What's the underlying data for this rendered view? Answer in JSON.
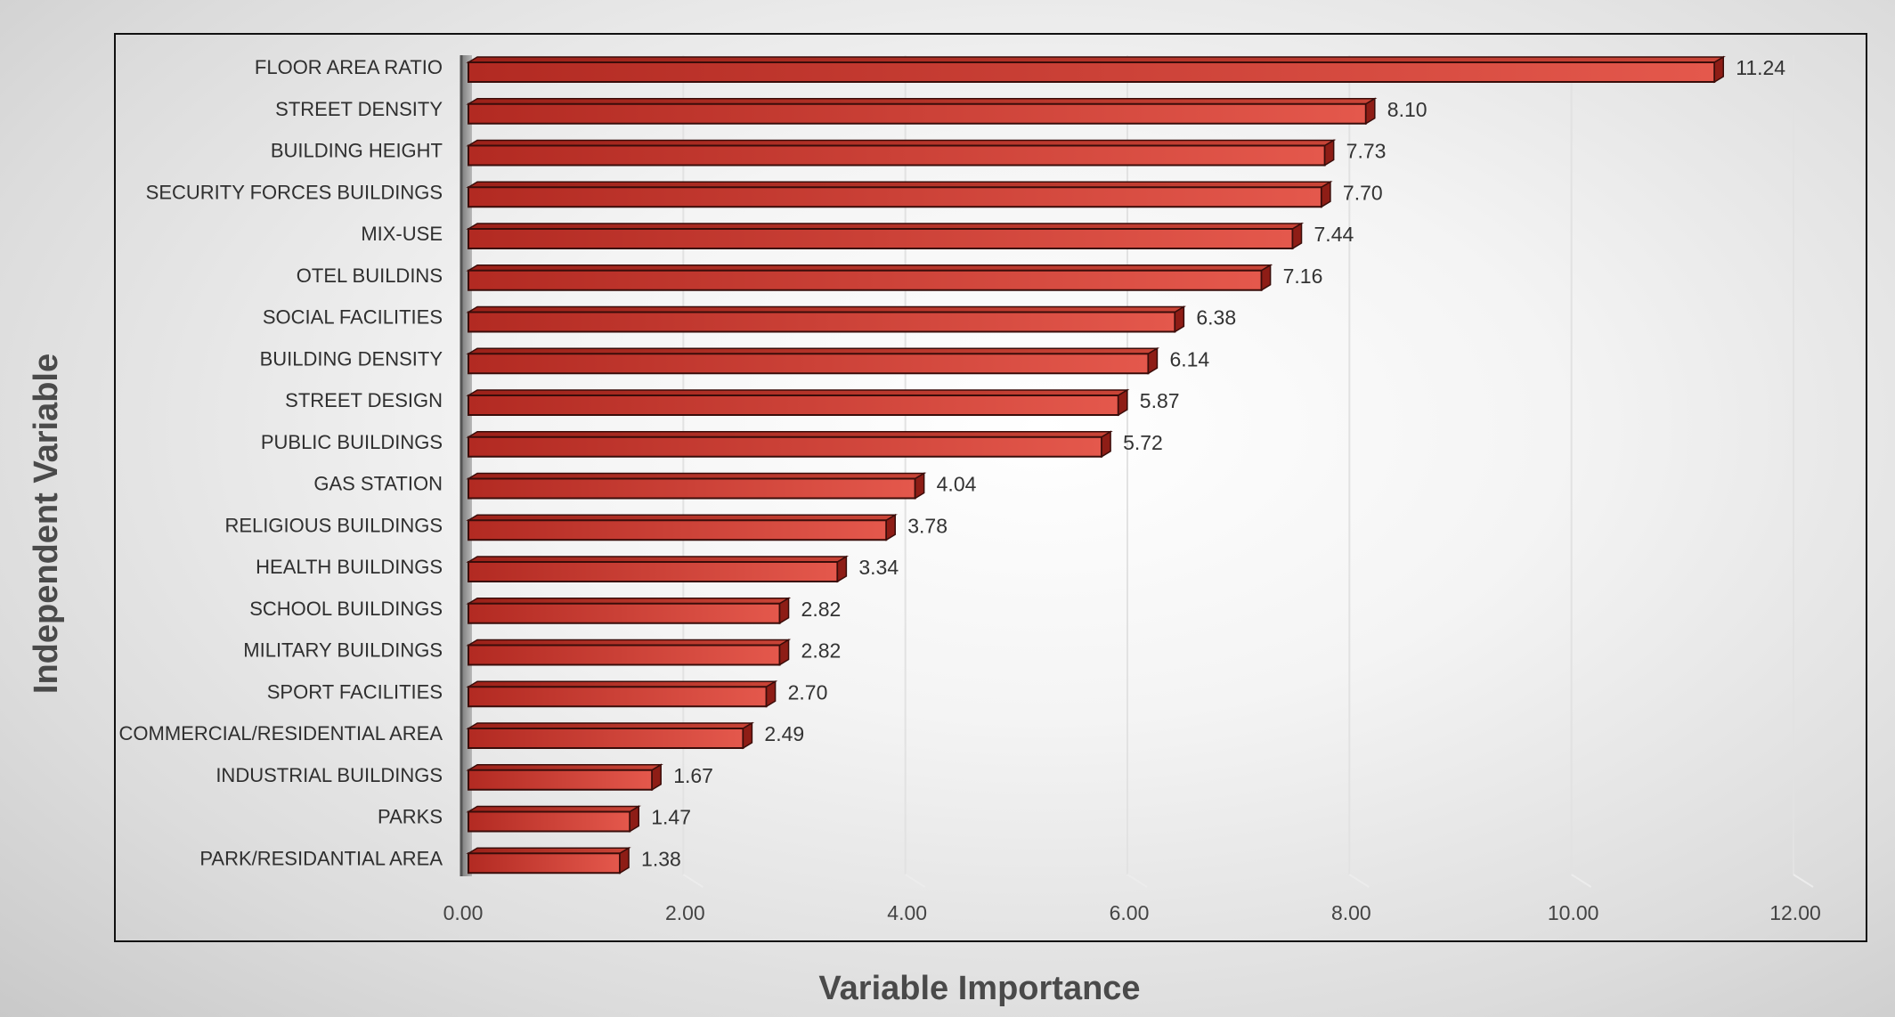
{
  "chart_data": {
    "type": "bar",
    "orientation": "horizontal",
    "xlabel": "Variable Importance",
    "ylabel": "Independent Variable",
    "xlim": [
      0,
      12
    ],
    "x_ticks": [
      "0.00",
      "2.00",
      "4.00",
      "6.00",
      "8.00",
      "10.00",
      "12.00"
    ],
    "grid": true,
    "bar_color": "#c8352c",
    "categories": [
      "FLOOR AREA RATIO",
      "STREET DENSITY",
      "BUILDING HEIGHT",
      "SECURITY FORCES BUILDINGS",
      "MIX-USE",
      "OTEL BUILDINS",
      "SOCIAL FACILITIES",
      "BUILDING DENSITY",
      "STREET DESIGN",
      "PUBLIC BUILDINGS",
      "GAS STATION",
      "RELIGIOUS BUILDINGS",
      "HEALTH BUILDINGS",
      "SCHOOL BUILDINGS",
      "MILITARY BUILDINGS",
      "SPORT FACILITIES",
      "COMMERCIAL/RESIDENTIAL AREA",
      "INDUSTRIAL BUILDINGS",
      "PARKS",
      "PARK/RESIDANTIAL AREA"
    ],
    "values": [
      11.24,
      8.1,
      7.73,
      7.7,
      7.44,
      7.16,
      6.38,
      6.14,
      5.87,
      5.72,
      4.04,
      3.78,
      3.34,
      2.82,
      2.82,
      2.7,
      2.49,
      1.67,
      1.47,
      1.38
    ],
    "value_labels": [
      "11.24",
      "8.10",
      "7.73",
      "7.70",
      "7.44",
      "7.16",
      "6.38",
      "6.14",
      "5.87",
      "5.72",
      "4.04",
      "3.78",
      "3.34",
      "2.82",
      "2.82",
      "2.70",
      "2.49",
      "1.67",
      "1.47",
      "1.38"
    ]
  }
}
